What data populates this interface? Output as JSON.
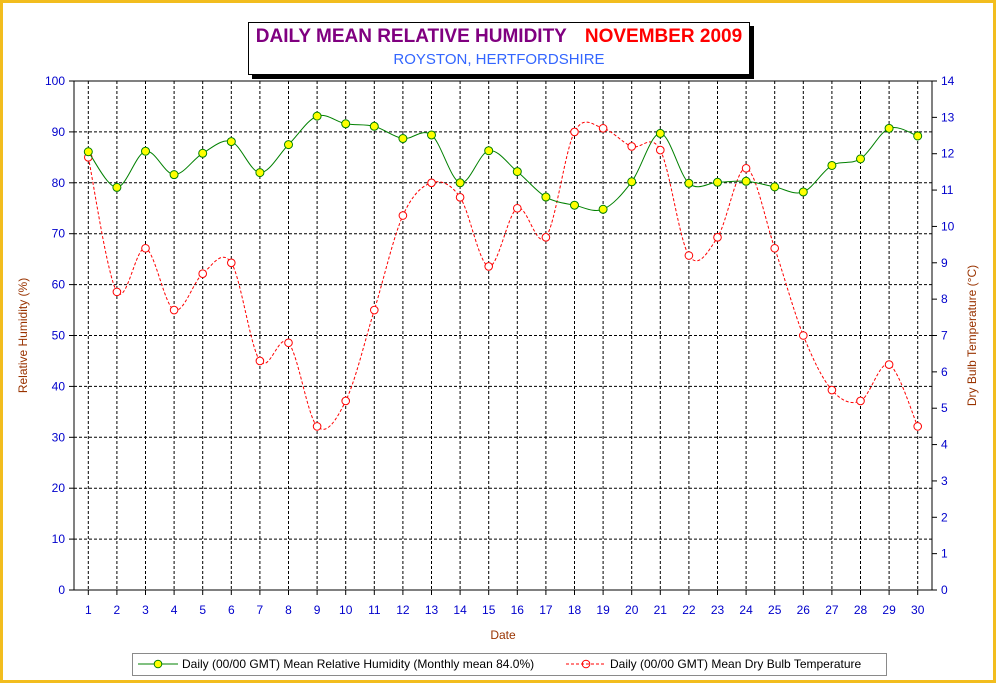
{
  "colors": {
    "frame": "#f2bd1e",
    "humidity_line": "#008000",
    "humidity_marker": "#ffff00",
    "temperature_line": "#ff0000",
    "left_axis_title": "#993300",
    "axis_ticks": "#0000cc",
    "title_main": "#800080",
    "title_month": "#ff0000",
    "subtitle": "#3366ff"
  },
  "chart_data": {
    "type": "line",
    "title": "DAILY MEAN RELATIVE HUMIDITY",
    "title_period": "NOVEMBER 2009",
    "subtitle": "ROYSTON, HERTFORDSHIRE",
    "xlabel": "Date",
    "ylabel": "Relative Humidity (%)",
    "y2label": "Dry Bulb Temperature (°C)",
    "x": [
      1,
      2,
      3,
      4,
      5,
      6,
      7,
      8,
      9,
      10,
      11,
      12,
      13,
      14,
      15,
      16,
      17,
      18,
      19,
      20,
      21,
      22,
      23,
      24,
      25,
      26,
      27,
      28,
      29,
      30
    ],
    "ylim": [
      0,
      100
    ],
    "yticks": [
      0,
      10,
      20,
      30,
      40,
      50,
      60,
      70,
      80,
      90,
      100
    ],
    "y2lim": [
      0,
      14
    ],
    "y2ticks": [
      0,
      1,
      2,
      3,
      4,
      5,
      6,
      7,
      8,
      9,
      10,
      11,
      12,
      13,
      14
    ],
    "grid": true,
    "legend_position": "bottom",
    "series": [
      {
        "name": "Daily (00/00 GMT) Mean Relative Humidity (Monthly mean 84.0%)",
        "axis": "left",
        "marker": "filled-circle",
        "line_style": "solid",
        "values": [
          86.1,
          79.1,
          86.2,
          81.6,
          85.8,
          88.1,
          82.0,
          87.5,
          93.1,
          91.6,
          91.1,
          88.7,
          89.4,
          80.0,
          86.3,
          82.2,
          77.2,
          75.6,
          74.8,
          80.2,
          89.7,
          79.9,
          80.1,
          80.3,
          79.2,
          78.2,
          83.4,
          84.7,
          90.7,
          89.2
        ]
      },
      {
        "name": "Daily (00/00 GMT) Mean Dry Bulb Temperature",
        "axis": "right",
        "marker": "open-circle",
        "line_style": "dashed",
        "values": [
          11.9,
          8.2,
          9.4,
          7.7,
          8.7,
          9.0,
          6.3,
          6.8,
          4.5,
          5.2,
          7.7,
          10.3,
          11.2,
          10.8,
          8.9,
          10.5,
          9.7,
          12.6,
          12.7,
          12.2,
          12.1,
          9.2,
          9.7,
          11.6,
          9.4,
          7.0,
          5.5,
          5.2,
          6.2,
          4.5
        ]
      }
    ]
  }
}
